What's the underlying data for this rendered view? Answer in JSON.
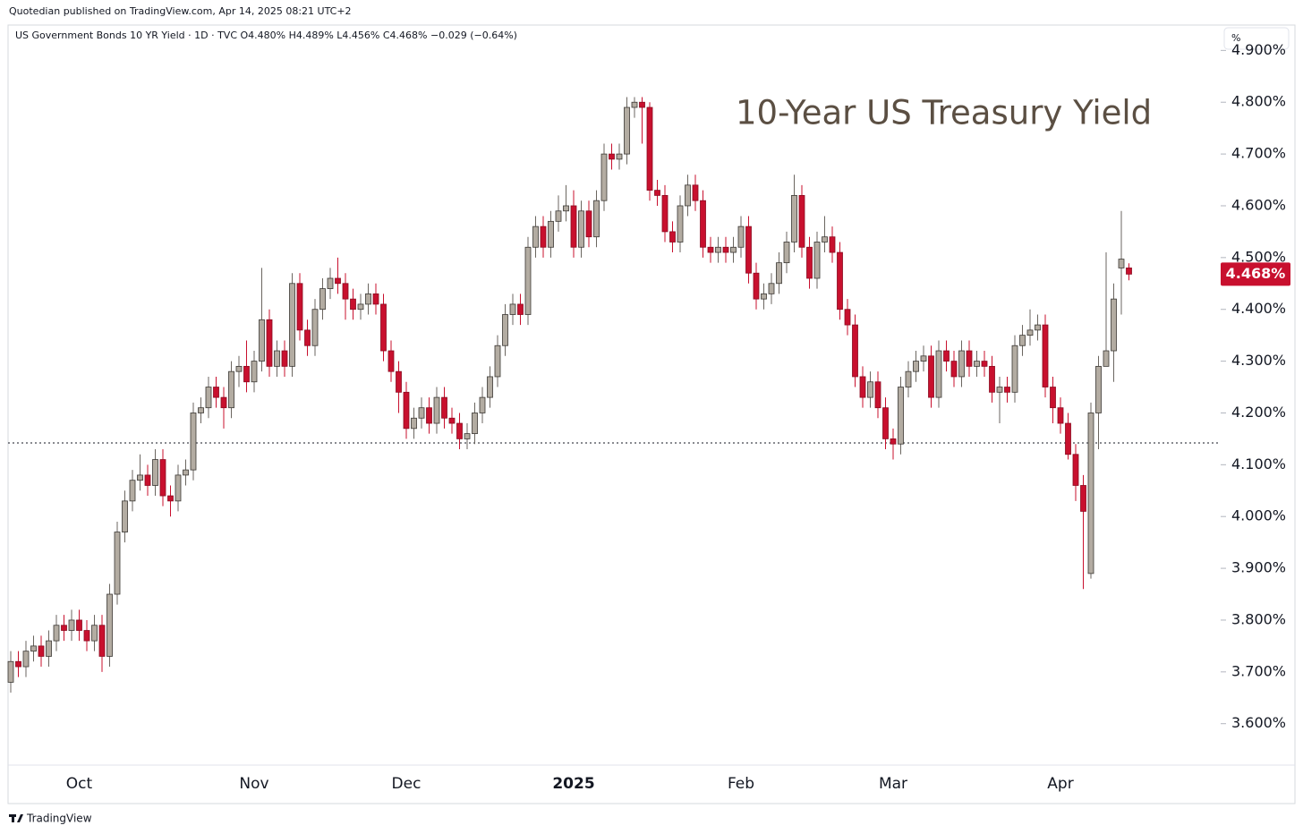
{
  "chart_data": {
    "type": "candlestick",
    "publisher_line": "Quotedian published on TradingView.com, Apr 14, 2025 08:21 UTC+2",
    "legend_line": "US Government Bonds 10 YR Yield · 1D · TVC  O4.480%  H4.489%  L4.456%  C4.468%  −0.029 (−0.64%)",
    "title": "10-Year US Treasury Yield",
    "unit": "%",
    "footer": "TradingView",
    "up_color": "#b3aca2",
    "down_color": "#c8102e",
    "grid": false,
    "categories": [
      null,
      null,
      null,
      null,
      null,
      null,
      null,
      null,
      null,
      "Oct",
      null,
      null,
      null,
      null,
      null,
      null,
      null,
      null,
      null,
      null,
      null,
      null,
      null,
      null,
      null,
      null,
      null,
      null,
      null,
      null,
      null,
      null,
      "Nov",
      null,
      null,
      null,
      null,
      null,
      null,
      null,
      null,
      null,
      null,
      null,
      null,
      null,
      null,
      null,
      null,
      null,
      null,
      null,
      "Dec",
      null,
      null,
      null,
      null,
      null,
      null,
      null,
      null,
      null,
      null,
      null,
      null,
      null,
      null,
      null,
      null,
      null,
      null,
      null,
      null,
      null,
      "2025",
      null,
      null,
      null,
      null,
      null,
      null,
      null,
      null,
      null,
      null,
      null,
      null,
      null,
      null,
      null,
      null,
      null,
      null,
      null,
      null,
      null,
      "Feb",
      null,
      null,
      null,
      null,
      null,
      null,
      null,
      null,
      null,
      null,
      null,
      null,
      null,
      null,
      null,
      null,
      null,
      null,
      null,
      "Mar",
      null,
      null,
      null,
      null,
      null,
      null,
      null,
      null,
      null,
      null,
      null,
      null,
      null,
      null,
      null,
      null,
      null,
      null,
      null,
      null,
      null,
      "Apr",
      null,
      null,
      null,
      null,
      null,
      null,
      null,
      null,
      null
    ],
    "open": [
      3.68,
      3.72,
      3.71,
      3.74,
      3.75,
      3.73,
      3.76,
      3.79,
      3.78,
      3.8,
      3.78,
      3.76,
      3.79,
      3.73,
      3.85,
      3.97,
      4.03,
      4.07,
      4.08,
      4.06,
      4.11,
      4.04,
      4.03,
      4.08,
      4.09,
      4.2,
      4.21,
      4.25,
      4.23,
      4.21,
      4.28,
      4.29,
      4.26,
      4.3,
      4.38,
      4.29,
      4.32,
      4.29,
      4.45,
      4.36,
      4.33,
      4.4,
      4.44,
      4.46,
      4.45,
      4.42,
      4.4,
      4.41,
      4.43,
      4.41,
      4.32,
      4.28,
      4.24,
      4.17,
      4.19,
      4.21,
      4.18,
      4.23,
      4.19,
      4.18,
      4.15,
      4.16,
      4.2,
      4.23,
      4.27,
      4.33,
      4.39,
      4.41,
      4.39,
      4.52,
      4.56,
      4.52,
      4.57,
      4.59,
      4.6,
      4.52,
      4.59,
      4.54,
      4.61,
      4.7,
      4.69,
      4.7,
      4.79,
      4.8,
      4.79,
      4.63,
      4.62,
      4.55,
      4.53,
      4.6,
      4.64,
      4.61,
      4.52,
      4.51,
      4.52,
      4.51,
      4.52,
      4.56,
      4.47,
      4.42,
      4.43,
      4.45,
      4.49,
      4.53,
      4.62,
      4.52,
      4.46,
      4.53,
      4.54,
      4.51,
      4.4,
      4.37,
      4.27,
      4.23,
      4.26,
      4.21,
      4.15,
      4.14,
      4.25,
      4.28,
      4.3,
      4.31,
      4.23,
      4.32,
      4.3,
      4.27,
      4.32,
      4.29,
      4.3,
      4.29,
      4.24,
      4.25,
      4.24,
      4.33,
      4.35,
      4.36,
      4.37,
      4.25,
      4.21,
      4.18,
      4.12,
      4.06,
      3.89,
      4.2,
      4.29,
      4.32,
      4.48,
      4.48
    ],
    "high": [
      3.74,
      3.74,
      3.76,
      3.77,
      3.77,
      3.78,
      3.81,
      3.81,
      3.82,
      3.82,
      3.8,
      3.81,
      3.81,
      3.87,
      3.99,
      4.05,
      4.09,
      4.12,
      4.1,
      4.13,
      4.13,
      4.06,
      4.1,
      4.11,
      4.22,
      4.23,
      4.27,
      4.27,
      4.25,
      4.3,
      4.31,
      4.34,
      4.32,
      4.48,
      4.4,
      4.34,
      4.34,
      4.47,
      4.47,
      4.38,
      4.42,
      4.46,
      4.48,
      4.5,
      4.47,
      4.44,
      4.43,
      4.45,
      4.45,
      4.43,
      4.34,
      4.3,
      4.26,
      4.21,
      4.23,
      4.23,
      4.25,
      4.25,
      4.21,
      4.2,
      4.18,
      4.22,
      4.25,
      4.29,
      4.35,
      4.41,
      4.43,
      4.43,
      4.54,
      4.58,
      4.58,
      4.59,
      4.62,
      4.64,
      4.63,
      4.61,
      4.61,
      4.63,
      4.72,
      4.72,
      4.72,
      4.81,
      4.81,
      4.81,
      4.8,
      4.65,
      4.64,
      4.57,
      4.62,
      4.66,
      4.66,
      4.63,
      4.54,
      4.54,
      4.54,
      4.54,
      4.58,
      4.58,
      4.49,
      4.45,
      4.47,
      4.51,
      4.55,
      4.66,
      4.64,
      4.54,
      4.55,
      4.58,
      4.56,
      4.53,
      4.42,
      4.39,
      4.29,
      4.28,
      4.28,
      4.23,
      4.17,
      4.27,
      4.3,
      4.32,
      4.33,
      4.33,
      4.34,
      4.34,
      4.32,
      4.34,
      4.34,
      4.32,
      4.32,
      4.31,
      4.27,
      4.27,
      4.35,
      4.37,
      4.4,
      4.39,
      4.39,
      4.27,
      4.23,
      4.2,
      4.14,
      4.08,
      4.22,
      4.31,
      4.51,
      4.45,
      4.59,
      4.489
    ],
    "low": [
      3.66,
      3.69,
      3.69,
      3.72,
      3.71,
      3.71,
      3.74,
      3.76,
      3.76,
      3.76,
      3.74,
      3.74,
      3.7,
      3.71,
      3.83,
      3.95,
      4.01,
      4.05,
      4.04,
      4.04,
      4.02,
      4.0,
      4.01,
      4.06,
      4.07,
      4.18,
      4.19,
      4.21,
      4.17,
      4.19,
      4.25,
      4.24,
      4.24,
      4.28,
      4.27,
      4.27,
      4.27,
      4.27,
      4.34,
      4.31,
      4.31,
      4.38,
      4.42,
      4.43,
      4.38,
      4.38,
      4.38,
      4.39,
      4.39,
      4.3,
      4.26,
      4.2,
      4.15,
      4.15,
      4.17,
      4.16,
      4.16,
      4.17,
      4.16,
      4.13,
      4.13,
      4.14,
      4.18,
      4.21,
      4.25,
      4.31,
      4.37,
      4.37,
      4.37,
      4.5,
      4.5,
      4.5,
      4.55,
      4.57,
      4.5,
      4.5,
      4.52,
      4.52,
      4.59,
      4.67,
      4.67,
      4.68,
      4.77,
      4.72,
      4.61,
      4.6,
      4.53,
      4.51,
      4.51,
      4.58,
      4.59,
      4.5,
      4.49,
      4.49,
      4.49,
      4.49,
      4.5,
      4.45,
      4.4,
      4.4,
      4.41,
      4.43,
      4.47,
      4.51,
      4.5,
      4.44,
      4.44,
      4.51,
      4.49,
      4.38,
      4.35,
      4.25,
      4.21,
      4.21,
      4.19,
      4.13,
      4.11,
      4.12,
      4.23,
      4.26,
      4.28,
      4.21,
      4.21,
      4.28,
      4.25,
      4.25,
      4.27,
      4.27,
      4.27,
      4.22,
      4.18,
      4.22,
      4.22,
      4.31,
      4.33,
      4.34,
      4.23,
      4.18,
      4.16,
      4.11,
      4.03,
      3.86,
      3.88,
      4.13,
      4.3,
      4.26,
      4.39,
      4.456
    ],
    "close": [
      3.72,
      3.71,
      3.74,
      3.75,
      3.73,
      3.76,
      3.79,
      3.78,
      3.8,
      3.78,
      3.76,
      3.79,
      3.73,
      3.85,
      3.97,
      4.03,
      4.07,
      4.08,
      4.06,
      4.11,
      4.04,
      4.03,
      4.08,
      4.09,
      4.2,
      4.21,
      4.25,
      4.23,
      4.21,
      4.28,
      4.29,
      4.26,
      4.3,
      4.38,
      4.29,
      4.32,
      4.29,
      4.45,
      4.36,
      4.33,
      4.4,
      4.44,
      4.46,
      4.45,
      4.42,
      4.4,
      4.41,
      4.43,
      4.41,
      4.32,
      4.28,
      4.24,
      4.17,
      4.19,
      4.21,
      4.18,
      4.23,
      4.19,
      4.18,
      4.15,
      4.16,
      4.2,
      4.23,
      4.27,
      4.33,
      4.39,
      4.41,
      4.39,
      4.52,
      4.56,
      4.52,
      4.57,
      4.59,
      4.6,
      4.52,
      4.59,
      4.54,
      4.61,
      4.7,
      4.69,
      4.7,
      4.79,
      4.8,
      4.79,
      4.63,
      4.62,
      4.55,
      4.53,
      4.6,
      4.64,
      4.61,
      4.52,
      4.51,
      4.52,
      4.51,
      4.52,
      4.56,
      4.47,
      4.42,
      4.43,
      4.45,
      4.49,
      4.53,
      4.62,
      4.52,
      4.46,
      4.53,
      4.54,
      4.51,
      4.4,
      4.37,
      4.27,
      4.23,
      4.26,
      4.21,
      4.15,
      4.14,
      4.25,
      4.28,
      4.3,
      4.31,
      4.23,
      4.32,
      4.3,
      4.27,
      4.32,
      4.29,
      4.3,
      4.29,
      4.24,
      4.25,
      4.24,
      4.33,
      4.35,
      4.36,
      4.37,
      4.25,
      4.21,
      4.18,
      4.12,
      4.06,
      4.01,
      4.2,
      4.29,
      4.32,
      4.42,
      4.497,
      4.468
    ],
    "ylim": [
      3.52,
      4.949
    ],
    "yticks": [
      {
        "value": 3.6,
        "label": "3.600%"
      },
      {
        "value": 3.7,
        "label": "3.700%"
      },
      {
        "value": 3.8,
        "label": "3.800%"
      },
      {
        "value": 3.9,
        "label": "3.900%"
      },
      {
        "value": 4.0,
        "label": "4.000%"
      },
      {
        "value": 4.1,
        "label": "4.100%"
      },
      {
        "value": 4.2,
        "label": "4.200%"
      },
      {
        "value": 4.3,
        "label": "4.300%"
      },
      {
        "value": 4.4,
        "label": "4.400%"
      },
      {
        "value": 4.5,
        "label": "4.500%"
      },
      {
        "value": 4.6,
        "label": "4.600%"
      },
      {
        "value": 4.7,
        "label": "4.700%"
      },
      {
        "value": 4.8,
        "label": "4.800%"
      },
      {
        "value": 4.9,
        "label": "4.900%"
      }
    ],
    "hline": 4.142,
    "price_label": {
      "value": 4.468,
      "label": "4.468%"
    }
  }
}
